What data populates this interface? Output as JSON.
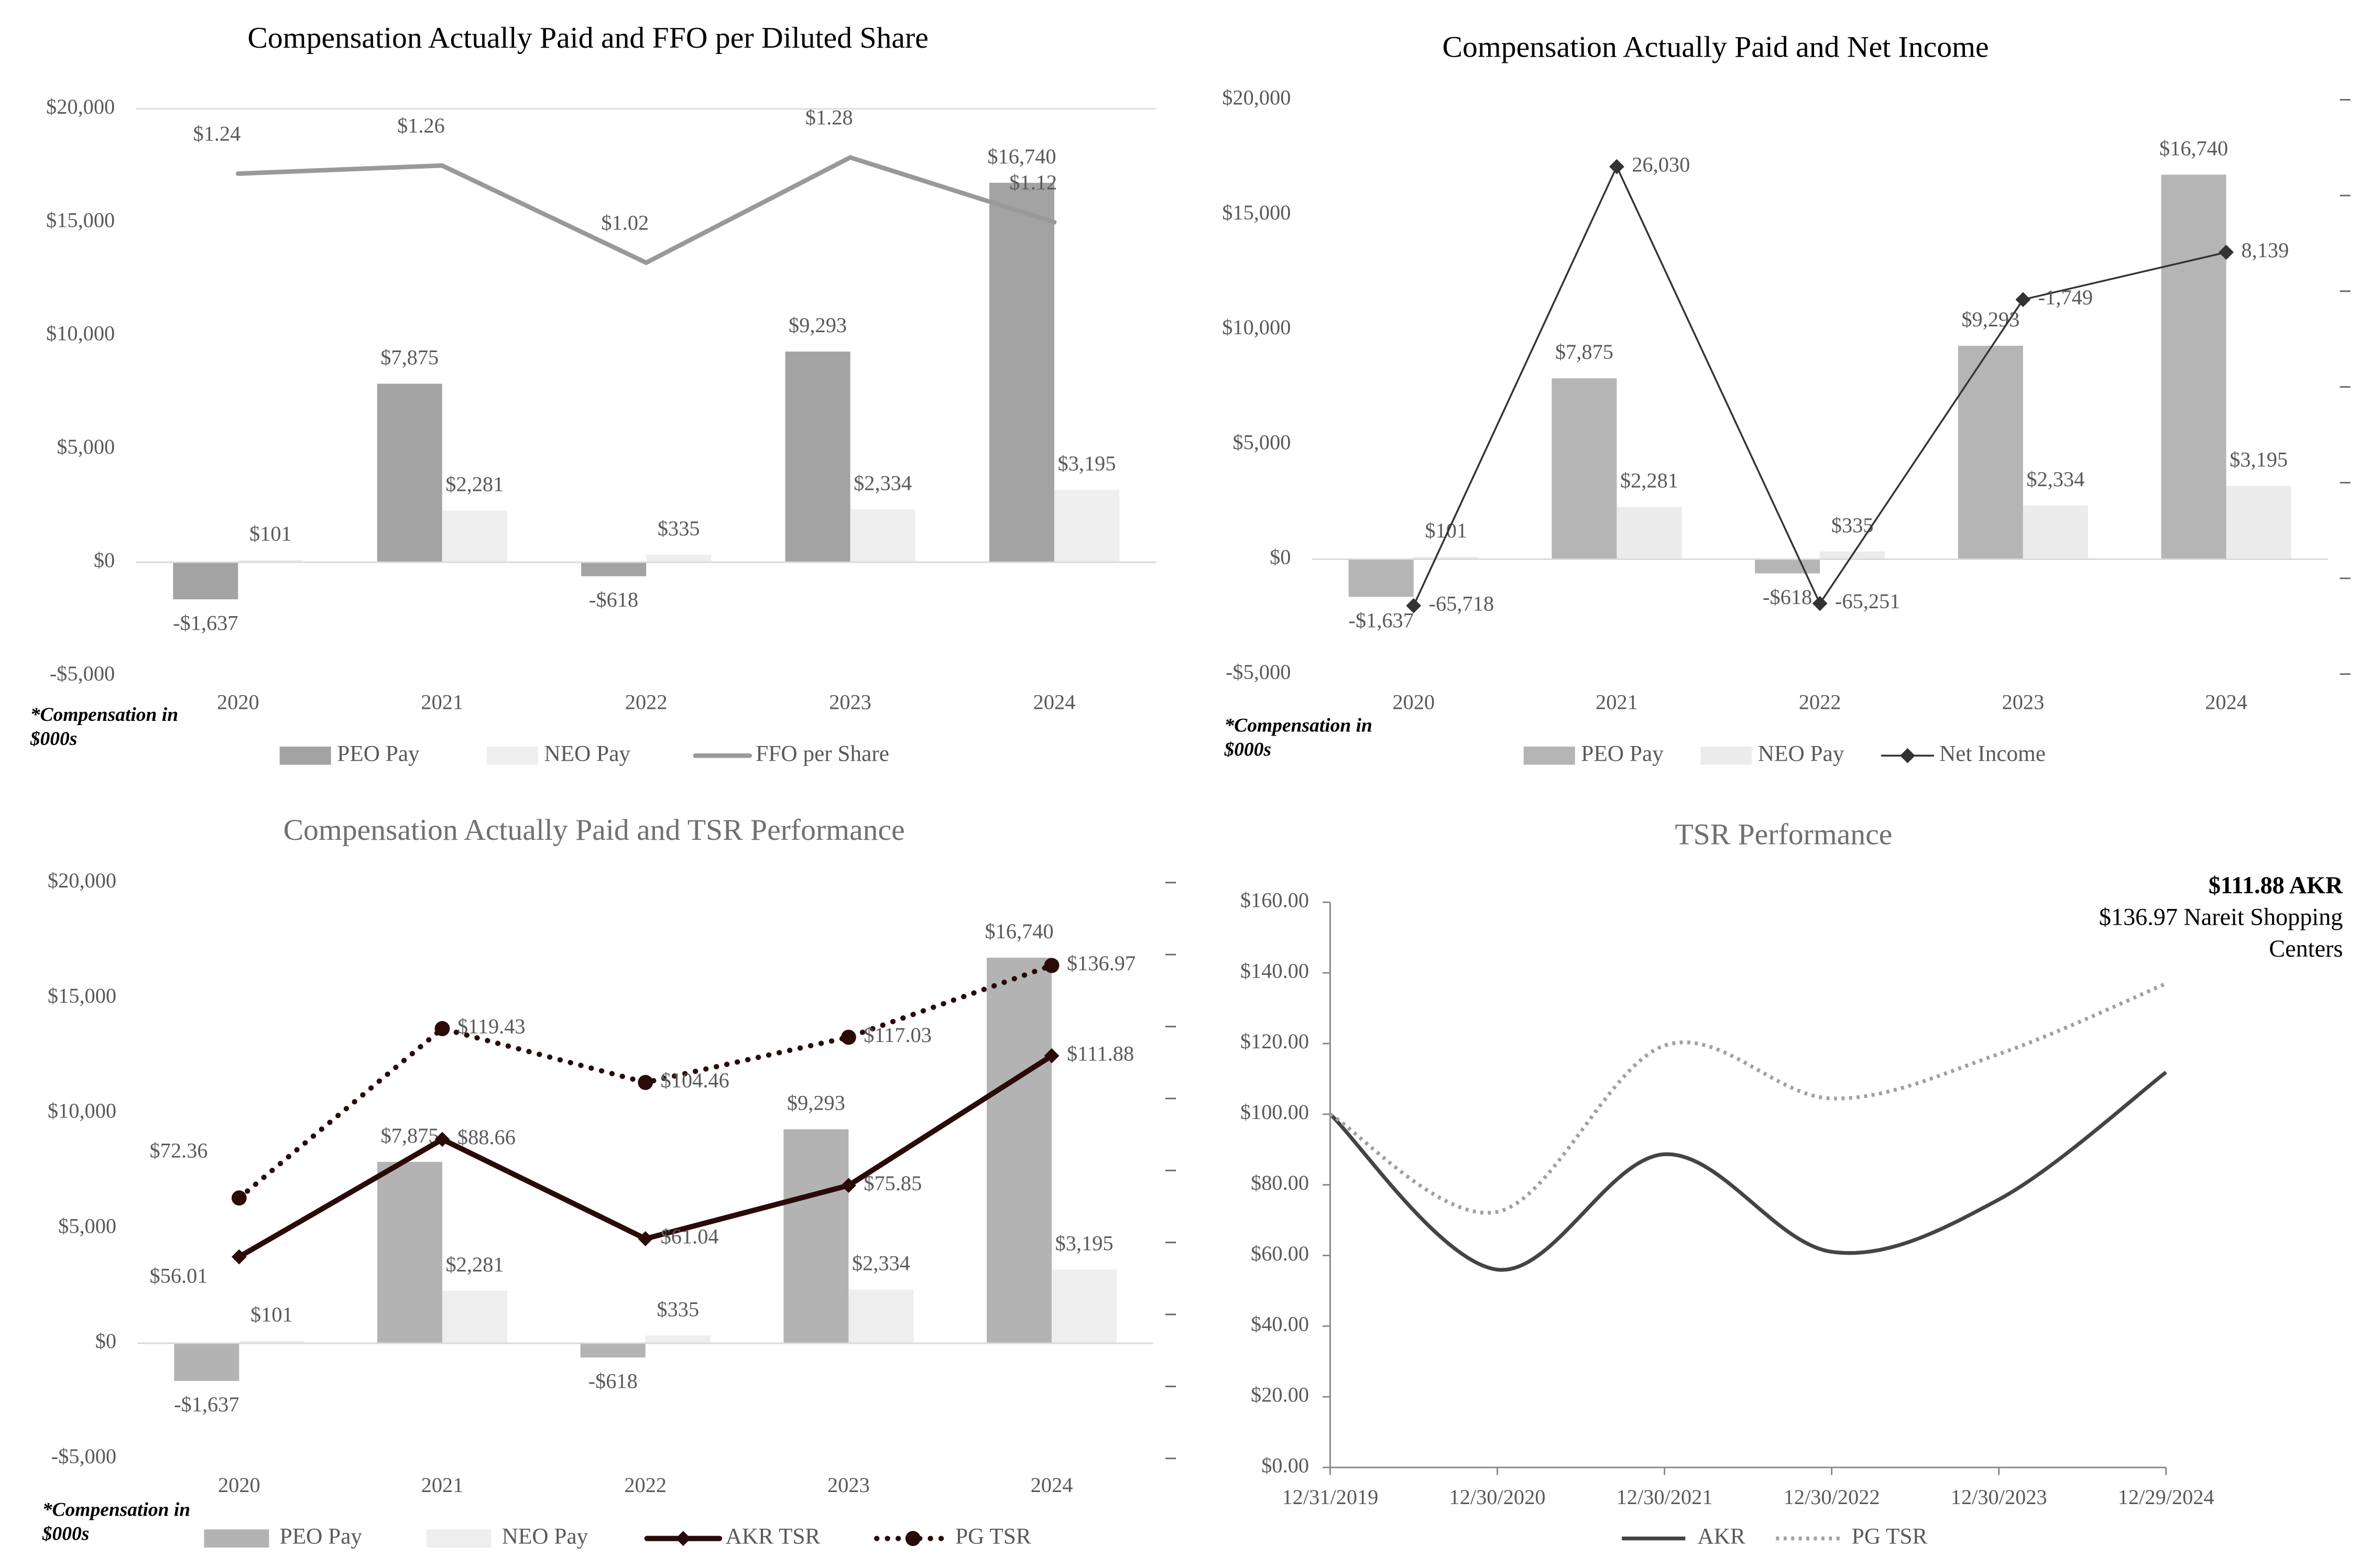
{
  "chart_data": [
    {
      "type": "bar",
      "title": "Compensation Actually Paid and FFO per Diluted Share",
      "categories": [
        "2020",
        "2021",
        "2022",
        "2023",
        "2024"
      ],
      "series": [
        {
          "name": "PEO Pay",
          "style": "bar",
          "color": "#a3a3a3",
          "values": [
            -1637,
            7875,
            -618,
            9293,
            16740
          ],
          "value_labels": [
            "-$1,637",
            "$7,875",
            "-$618",
            "$9,293",
            "$16,740"
          ]
        },
        {
          "name": "NEO Pay",
          "style": "bar",
          "color": "#efefef",
          "values": [
            101,
            2281,
            335,
            2334,
            3195
          ],
          "value_labels": [
            "$101",
            "$2,281",
            "$335",
            "$2,334",
            "$3,195"
          ]
        },
        {
          "name": "FFO per Share",
          "style": "line",
          "color": "#999999",
          "axis": "y2",
          "values": [
            1.24,
            1.26,
            1.02,
            1.28,
            1.12
          ],
          "value_labels": [
            "$1.24",
            "$1.26",
            "$1.02",
            "$1.28",
            "$1.12"
          ]
        }
      ],
      "ylim": [
        -5000,
        20000
      ],
      "yticks": [
        {
          "value": -5000,
          "label": "-$5,000"
        },
        {
          "value": 0,
          "label": "$0"
        },
        {
          "value": 5000,
          "label": "$5,000"
        },
        {
          "value": 10000,
          "label": "$10,000"
        },
        {
          "value": 15000,
          "label": "$15,000"
        },
        {
          "value": 20000,
          "label": "$20,000"
        }
      ],
      "y2lim": [
        0,
        1.4
      ],
      "annotation": "*Compensation in $000s"
    },
    {
      "type": "bar",
      "title": "Compensation Actually Paid and Net Income",
      "categories": [
        "2020",
        "2021",
        "2022",
        "2023",
        "2024"
      ],
      "series": [
        {
          "name": "PEO Pay",
          "style": "bar",
          "color": "#b5b5b5",
          "values": [
            -1637,
            7875,
            -618,
            9293,
            16740
          ],
          "value_labels": [
            "-$1,637",
            "$7,875",
            "-$618",
            "$9,293",
            "$16,740"
          ]
        },
        {
          "name": "NEO Pay",
          "style": "bar",
          "color": "#ececec",
          "values": [
            101,
            2281,
            335,
            2334,
            3195
          ],
          "value_labels": [
            "$101",
            "$2,281",
            "$335",
            "$2,334",
            "$3,195"
          ]
        },
        {
          "name": "Net Income",
          "style": "line",
          "color": "#333333",
          "marker": "diamond",
          "axis": "y2",
          "values": [
            -65718,
            26030,
            -65251,
            -1749,
            8139
          ],
          "value_labels": [
            "-65,718",
            "26,030",
            "-65,251",
            "-1,749",
            "8,139"
          ]
        }
      ],
      "ylim": [
        -5000,
        20000
      ],
      "yticks": [
        {
          "value": -5000,
          "label": "-$5,000"
        },
        {
          "value": 0,
          "label": "$0"
        },
        {
          "value": 5000,
          "label": "$5,000"
        },
        {
          "value": 10000,
          "label": "$10,000"
        },
        {
          "value": 15000,
          "label": "$15,000"
        },
        {
          "value": 20000,
          "label": "$20,000"
        }
      ],
      "y2lim": [
        -80000,
        40000
      ],
      "y2ticks": [
        -80000,
        -60000,
        -40000,
        -20000,
        0,
        20000,
        40000
      ],
      "annotation": "*Compensation in $000s"
    },
    {
      "type": "bar",
      "title": "Compensation Actually Paid and TSR Performance",
      "categories": [
        "2020",
        "2021",
        "2022",
        "2023",
        "2024"
      ],
      "series": [
        {
          "name": "PEO Pay",
          "style": "bar",
          "color": "#b3b3b3",
          "values": [
            -1637,
            7875,
            -618,
            9293,
            16740
          ],
          "value_labels": [
            "-$1,637",
            "$7,875",
            "-$618",
            "$9,293",
            "$16,740"
          ]
        },
        {
          "name": "NEO Pay",
          "style": "bar",
          "color": "#eeeeee",
          "values": [
            101,
            2281,
            335,
            2334,
            3195
          ],
          "value_labels": [
            "$101",
            "$2,281",
            "$335",
            "$2,334",
            "$3,195"
          ]
        },
        {
          "name": "AKR TSR",
          "style": "line",
          "color": "#2b0a0a",
          "marker": "diamond",
          "axis": "y2",
          "values": [
            56.01,
            88.66,
            61.04,
            75.85,
            111.88
          ],
          "value_labels": [
            "$56.01",
            "$88.66",
            "$61.04",
            "$75.85",
            "$111.88"
          ]
        },
        {
          "name": "PG TSR",
          "style": "line",
          "color": "#2b0a0a",
          "marker": "circle",
          "dash": "dotted",
          "axis": "y2",
          "values": [
            72.36,
            119.43,
            104.46,
            117.03,
            136.97
          ],
          "value_labels": [
            "$72.36",
            "$119.43",
            "$104.46",
            "$117.03",
            "$136.97"
          ]
        }
      ],
      "ylim": [
        -5000,
        20000
      ],
      "yticks": [
        {
          "value": -5000,
          "label": "-$5,000"
        },
        {
          "value": 0,
          "label": "$0"
        },
        {
          "value": 5000,
          "label": "$5,000"
        },
        {
          "value": 10000,
          "label": "$10,000"
        },
        {
          "value": 15000,
          "label": "$15,000"
        },
        {
          "value": 20000,
          "label": "$20,000"
        }
      ],
      "y2lim": [
        0,
        160
      ],
      "y2ticks": [
        0,
        20,
        40,
        60,
        80,
        100,
        120,
        140,
        160
      ],
      "annotation": "*Compensation in $000s"
    },
    {
      "type": "line",
      "title": "TSR Performance",
      "categories": [
        "12/31/2019",
        "12/30/2020",
        "12/30/2021",
        "12/30/2022",
        "12/30/2023",
        "12/29/2024"
      ],
      "series": [
        {
          "name": "AKR",
          "color": "#444444",
          "smooth": true,
          "values": [
            100,
            56.01,
            88.66,
            61.04,
            75.85,
            111.88
          ]
        },
        {
          "name": "PG TSR",
          "color": "#a0a0a0",
          "smooth": true,
          "dash": "dotted",
          "values": [
            100,
            72.36,
            119.43,
            104.46,
            117.03,
            136.97
          ]
        }
      ],
      "ylim": [
        0,
        160
      ],
      "yticks": [
        {
          "value": 0,
          "label": "$0.00"
        },
        {
          "value": 20,
          "label": "$20.00"
        },
        {
          "value": 40,
          "label": "$40.00"
        },
        {
          "value": 60,
          "label": "$60.00"
        },
        {
          "value": 80,
          "label": "$80.00"
        },
        {
          "value": 100,
          "label": "$100.00"
        },
        {
          "value": 120,
          "label": "$120.00"
        },
        {
          "value": 140,
          "label": "$140.00"
        },
        {
          "value": 160,
          "label": "$160.00"
        }
      ],
      "annotations": [
        "$111.88 AKR",
        "$136.97 Nareit Shopping Centers"
      ]
    }
  ]
}
